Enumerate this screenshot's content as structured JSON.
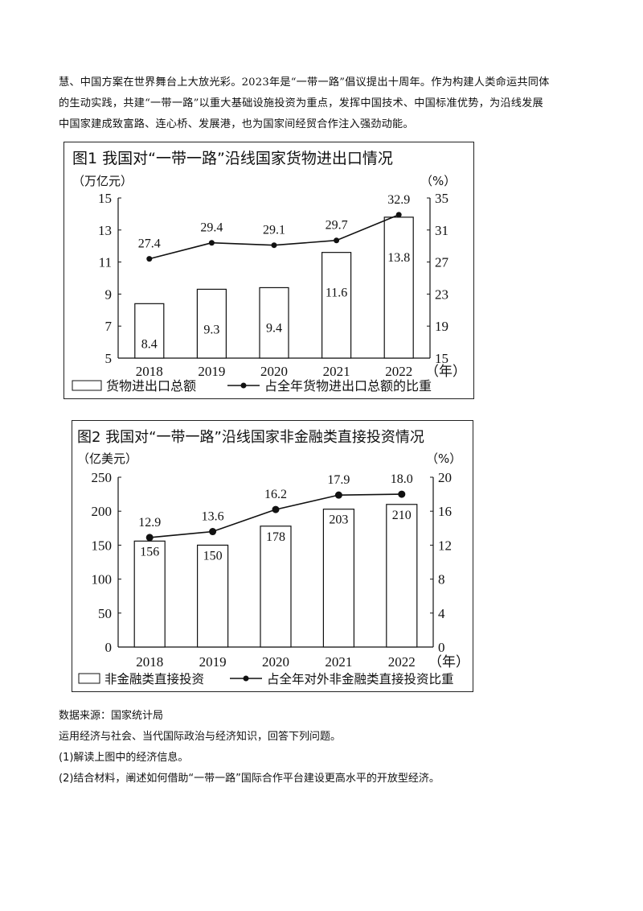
{
  "passage": {
    "lines": [
      "慧、中国方案在世界舞台上大放光彩。2023年是“一带一路”倡议提出十周年。作为构建人类命运共同体",
      "的生动实践，共建“一带一路”以重大基础设施投资为重点，发挥中国技术、中国标准优势，为沿线发展",
      "中国家建成致富路、连心桥、发展港，也为国家间经贸合作注入强劲动能。"
    ]
  },
  "chart_data": [
    {
      "type": "bar",
      "title": "图1  我国对“一带一路”沿线国家货物进出口情况",
      "left_unit": "（万亿元）",
      "right_unit": "（%）",
      "x_unit": "（年）",
      "categories": [
        "2018",
        "2019",
        "2020",
        "2021",
        "2022"
      ],
      "y_ticks": [
        5,
        7,
        9,
        11,
        13,
        15
      ],
      "y_ticks_right": [
        15,
        19,
        23,
        27,
        31,
        35
      ],
      "ylim": [
        5,
        15
      ],
      "ylim_right": [
        15,
        35
      ],
      "series": [
        {
          "name": "货物进出口总额",
          "kind": "bar",
          "axis": "left",
          "values": [
            8.4,
            9.3,
            9.4,
            11.6,
            13.8
          ]
        },
        {
          "name": "占全年货物进出口总额的比重",
          "kind": "line",
          "axis": "right",
          "values": [
            27.4,
            29.4,
            29.1,
            29.7,
            32.9
          ]
        }
      ],
      "legend_position": "bottom",
      "grid": false
    },
    {
      "type": "bar",
      "title": "图2  我国对“一带一路”沿线国家非金融类直接投资情况",
      "left_unit": "（亿美元）",
      "right_unit": "（%）",
      "x_unit": "（年）",
      "categories": [
        "2018",
        "2019",
        "2020",
        "2021",
        "2022"
      ],
      "y_ticks": [
        0,
        50,
        100,
        150,
        200,
        250
      ],
      "y_ticks_right": [
        0,
        4,
        8,
        12,
        16,
        20
      ],
      "ylim": [
        0,
        250
      ],
      "ylim_right": [
        0,
        20
      ],
      "series": [
        {
          "name": "非金融类直接投资",
          "kind": "bar",
          "axis": "left",
          "values": [
            156,
            150,
            178,
            203,
            210
          ]
        },
        {
          "name": "占全年对外非金融类直接投资比重",
          "kind": "line",
          "axis": "right",
          "values": [
            12.9,
            13.6,
            16.2,
            17.9,
            18.0
          ]
        }
      ],
      "legend_position": "bottom",
      "grid": false
    }
  ],
  "after_text": {
    "source": "数据来源：国家统计局",
    "instruction": "运用经济与社会、当代国际政治与经济知识，回答下列问题。",
    "q1": "(1)解读上图中的经济信息。",
    "q2": "(2)结合材料，阐述如何借助“一带一路”国际合作平台建设更高水平的开放型经济。"
  }
}
